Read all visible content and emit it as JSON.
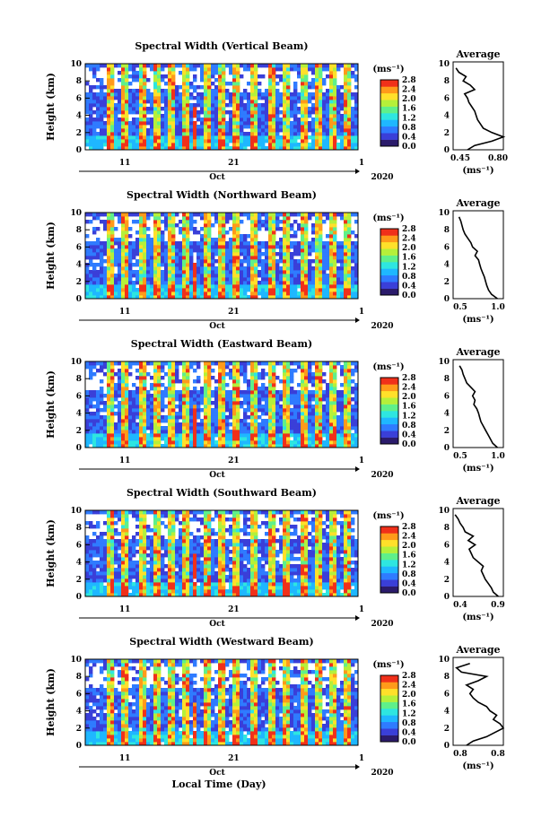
{
  "figure": {
    "footer_label": "Local Time (Day)"
  },
  "chart_data": [
    {
      "type": "heatmap",
      "title": "Spectral Width (Vertical Beam)",
      "ylabel": "Height (km)",
      "ylim": [
        0,
        10
      ],
      "y_ticks": [
        "0",
        "2",
        "4",
        "6",
        "8",
        "10"
      ],
      "x_ticks": [
        "11",
        "21",
        "1"
      ],
      "x_month": "Oct",
      "x_year": "2020",
      "colorbar": {
        "unit": "(ms⁻¹)",
        "ticks": [
          "0.0",
          "0.4",
          "0.8",
          "1.2",
          "1.6",
          "2.0",
          "2.4",
          "2.8"
        ],
        "range": [
          0,
          2.8
        ]
      },
      "profile": {
        "title": "Average",
        "xlabel": "(ms⁻¹)",
        "xlim": [
          0.45,
          0.8
        ],
        "x_ticks": [
          "0.45",
          "0.80"
        ],
        "height": [
          0,
          0.5,
          1,
          1.5,
          2,
          2.5,
          3,
          3.5,
          4,
          4.5,
          5,
          5.5,
          6,
          6.5,
          7,
          7.5,
          8,
          8.5,
          9,
          9.5
        ],
        "value": [
          0.55,
          0.6,
          0.72,
          0.8,
          0.72,
          0.66,
          0.64,
          0.62,
          0.61,
          0.6,
          0.58,
          0.56,
          0.55,
          0.53,
          0.6,
          0.57,
          0.52,
          0.54,
          0.49,
          0.47
        ]
      }
    },
    {
      "type": "heatmap",
      "title": "Spectral Width (Northward Beam)",
      "ylabel": "Height (km)",
      "ylim": [
        0,
        10
      ],
      "y_ticks": [
        "0",
        "2",
        "4",
        "6",
        "8",
        "10"
      ],
      "x_ticks": [
        "11",
        "21",
        "1"
      ],
      "x_month": "Oct",
      "x_year": "2020",
      "colorbar": {
        "unit": "(ms⁻¹)",
        "ticks": [
          "0.0",
          "0.4",
          "0.8",
          "1.2",
          "1.6",
          "2.0",
          "2.4",
          "2.8"
        ],
        "range": [
          0,
          2.8
        ]
      },
      "profile": {
        "title": "Average",
        "xlabel": "(ms⁻¹)",
        "xlim": [
          0.25,
          1.1
        ],
        "x_ticks": [
          "0.5",
          "1.0"
        ],
        "height": [
          0,
          0.5,
          1,
          1.5,
          2,
          2.5,
          3,
          3.5,
          4,
          4.5,
          5,
          5.5,
          6,
          6.5,
          7,
          7.5,
          8,
          8.5,
          9,
          9.5
        ],
        "value": [
          1.0,
          0.9,
          0.85,
          0.82,
          0.8,
          0.78,
          0.75,
          0.72,
          0.7,
          0.68,
          0.62,
          0.66,
          0.58,
          0.55,
          0.5,
          0.45,
          0.42,
          0.4,
          0.38,
          0.35
        ]
      }
    },
    {
      "type": "heatmap",
      "title": "Spectral Width (Eastward Beam)",
      "ylabel": "Height (km)",
      "ylim": [
        0,
        10
      ],
      "y_ticks": [
        "0",
        "2",
        "4",
        "6",
        "8",
        "10"
      ],
      "x_ticks": [
        "11",
        "21",
        "1"
      ],
      "x_month": "Oct",
      "x_year": "2020",
      "colorbar": {
        "unit": "(ms⁻¹)",
        "ticks": [
          "0.0",
          "0.4",
          "0.8",
          "1.2",
          "1.6",
          "2.0",
          "2.4",
          "2.8"
        ],
        "range": [
          0,
          2.8
        ]
      },
      "profile": {
        "title": "Average",
        "xlabel": "(ms⁻¹)",
        "xlim": [
          0.25,
          1.1
        ],
        "x_ticks": [
          "0.5",
          "1.0"
        ],
        "height": [
          0,
          0.5,
          1,
          1.5,
          2,
          2.5,
          3,
          3.5,
          4,
          4.5,
          5,
          5.5,
          6,
          6.5,
          7,
          7.5,
          8,
          8.5,
          9,
          9.5
        ],
        "value": [
          1.0,
          0.92,
          0.88,
          0.84,
          0.8,
          0.76,
          0.72,
          0.7,
          0.68,
          0.65,
          0.6,
          0.62,
          0.58,
          0.62,
          0.55,
          0.48,
          0.45,
          0.42,
          0.4,
          0.36
        ]
      }
    },
    {
      "type": "heatmap",
      "title": "Spectral Width (Southward Beam)",
      "ylabel": "Height (km)",
      "ylim": [
        0,
        10
      ],
      "y_ticks": [
        "0",
        "2",
        "4",
        "6",
        "8",
        "10"
      ],
      "x_ticks": [
        "11",
        "21",
        "1"
      ],
      "x_month": "Oct",
      "x_year": "2020",
      "colorbar": {
        "unit": "(ms⁻¹)",
        "ticks": [
          "0.0",
          "0.4",
          "0.8",
          "1.2",
          "1.6",
          "2.0",
          "2.4",
          "2.8"
        ],
        "range": [
          0,
          2.8
        ]
      },
      "profile": {
        "title": "Average",
        "xlabel": "(ms⁻¹)",
        "xlim": [
          0.4,
          0.9
        ],
        "x_ticks": [
          "0.4",
          "0.9"
        ],
        "height": [
          0,
          0.5,
          1,
          1.5,
          2,
          2.5,
          3,
          3.5,
          4,
          4.5,
          5,
          5.5,
          6,
          6.5,
          7,
          7.5,
          8,
          8.5,
          9,
          9.5
        ],
        "value": [
          0.85,
          0.8,
          0.78,
          0.75,
          0.72,
          0.7,
          0.68,
          0.7,
          0.65,
          0.6,
          0.58,
          0.56,
          0.62,
          0.55,
          0.6,
          0.52,
          0.5,
          0.47,
          0.45,
          0.42
        ]
      }
    },
    {
      "type": "heatmap",
      "title": "Spectral Width (Westward Beam)",
      "ylabel": "Height (km)",
      "ylim": [
        0,
        10
      ],
      "y_ticks": [
        "0",
        "2",
        "4",
        "6",
        "8",
        "10"
      ],
      "x_ticks": [
        "11",
        "21",
        "1"
      ],
      "x_month": "Oct",
      "x_year": "2020",
      "colorbar": {
        "unit": "(ms⁻¹)",
        "ticks": [
          "0.0",
          "0.4",
          "0.8",
          "1.2",
          "1.6",
          "2.0",
          "2.4",
          "2.8"
        ],
        "range": [
          0,
          2.8
        ]
      },
      "profile": {
        "title": "Average",
        "xlabel": "(ms⁻¹)",
        "xlim": [
          0.6,
          0.9
        ],
        "x_ticks": [
          "0.8",
          "0.8"
        ],
        "height": [
          0,
          0.5,
          1,
          1.5,
          2,
          2.5,
          3,
          3.5,
          4,
          4.5,
          5,
          5.5,
          6,
          6.5,
          7,
          7.5,
          8,
          8.5,
          9,
          9.5
        ],
        "value": [
          0.68,
          0.72,
          0.8,
          0.85,
          0.9,
          0.88,
          0.84,
          0.86,
          0.82,
          0.8,
          0.75,
          0.72,
          0.7,
          0.72,
          0.68,
          0.75,
          0.8,
          0.65,
          0.62,
          0.7
        ]
      }
    }
  ]
}
